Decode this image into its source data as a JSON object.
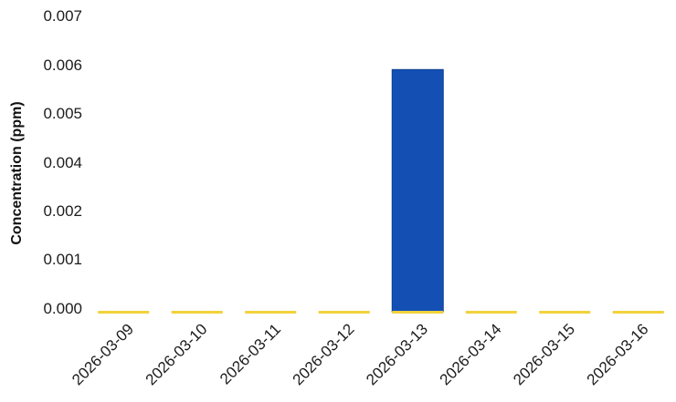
{
  "chart_data": {
    "type": "bar",
    "ylabel": "Concentration (ppm)",
    "y_ticks": [
      "0.000",
      "0.001",
      "0.002",
      "0.004",
      "0.005",
      "0.006",
      "0.007"
    ],
    "categories": [
      "2026-03-09",
      "2026-03-10",
      "2026-03-11",
      "2026-03-12",
      "2026-03-13",
      "2026-03-14",
      "2026-03-15",
      "2026-03-16"
    ],
    "series": [
      {
        "values": [
          0.0,
          0.0,
          0.0,
          0.0,
          0.0059,
          0.0,
          0.0,
          0.0
        ],
        "color": "#1450b4"
      }
    ],
    "zero_marker_color": "#f2d23a",
    "grid": false
  }
}
